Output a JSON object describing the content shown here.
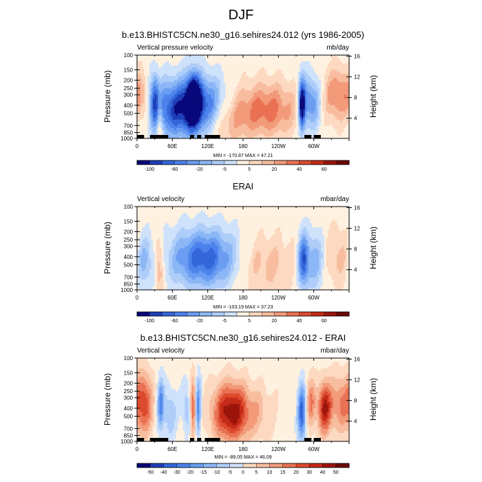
{
  "figure": {
    "title": "DJF"
  },
  "colors": {
    "diverging": [
      "#08087a",
      "#1f3fb8",
      "#3366d9",
      "#4d82ec",
      "#6a9df2",
      "#8cb7f6",
      "#aecdf9",
      "#cfe2fb",
      "#fff1e0",
      "#fcd9c0",
      "#f8bd9f",
      "#f29a7a",
      "#ea7153",
      "#dc4a2e",
      "#c42a18",
      "#9c150c",
      "#6e0a05"
    ],
    "cap_black": "#000000"
  },
  "axes": {
    "pressure_ticks": [
      "100",
      "150",
      "200",
      "250",
      "300",
      "400",
      "500",
      "700",
      "850",
      "1000"
    ],
    "height_ticks": [
      "16",
      "12",
      "8",
      "4"
    ],
    "lon_ticks": [
      "0",
      "60E",
      "120E",
      "180",
      "120W",
      "60W"
    ],
    "ylabel": "Pressure (mb)",
    "y2label": "Height (km)"
  },
  "chart_data": [
    {
      "type": "heatmap",
      "title": "b.e13.BHISTC5CN.ne30_g16.sehires24.012 (yrs 1986-2005)",
      "left_label": "Vertical pressure velocity",
      "right_label": "mb/day",
      "stats": "MIN = -170.87  MAX = 47.21",
      "min": -170.87,
      "max": 47.21,
      "colorbar_labels": [
        "-100",
        "-60",
        "-20",
        "-5",
        "5",
        "20",
        "40",
        "60"
      ],
      "xlim": [
        0,
        360
      ],
      "ylim_mb": [
        1000,
        100
      ],
      "features": [
        {
          "lon": 32,
          "p": 350,
          "w": 7,
          "s": 0.5,
          "a": -22
        },
        {
          "lon": 65,
          "p": 450,
          "w": 28,
          "s": 0.55,
          "a": -25
        },
        {
          "lon": 96,
          "p": 350,
          "w": 8,
          "s": 0.5,
          "a": -32
        },
        {
          "lon": 112,
          "p": 400,
          "w": 26,
          "s": 0.55,
          "a": -22
        },
        {
          "lon": 38,
          "p": 500,
          "w": 4,
          "s": 0.6,
          "a": 18
        },
        {
          "lon": 8,
          "p": 330,
          "w": 9,
          "s": 0.45,
          "a": 10
        },
        {
          "lon": 150,
          "p": 650,
          "w": 30,
          "s": 0.45,
          "a": 8
        },
        {
          "lon": 220,
          "p": 450,
          "w": 38,
          "s": 0.5,
          "a": 16
        },
        {
          "lon": 280,
          "p": 400,
          "w": 4,
          "s": 0.5,
          "a": -32
        },
        {
          "lon": 294,
          "p": 380,
          "w": 12,
          "s": 0.5,
          "a": -20
        },
        {
          "lon": 340,
          "p": 300,
          "w": 16,
          "s": 0.5,
          "a": 15
        }
      ],
      "topography": [
        [
          0,
          12
        ],
        [
          22,
          16
        ],
        [
          28,
          12
        ],
        [
          30,
          18
        ],
        [
          34,
          19
        ],
        [
          90,
          7
        ],
        [
          102,
          7
        ],
        [
          115,
          10
        ],
        [
          126,
          12
        ],
        [
          125,
          16
        ],
        [
          284,
          12
        ],
        [
          300,
          12
        ]
      ]
    },
    {
      "type": "heatmap",
      "title": "ERAI",
      "left_label": "Vertical velocity",
      "right_label": "mbar/day",
      "stats": "MIN = -103.19  MAX = 37.23",
      "min": -103.19,
      "max": 37.23,
      "colorbar_labels": [
        "-100",
        "-60",
        "-20",
        "-5",
        "5",
        "20",
        "40",
        "60"
      ],
      "xlim": [
        0,
        360
      ],
      "ylim_mb": [
        1000,
        100
      ],
      "features": [
        {
          "lon": 12,
          "p": 450,
          "w": 10,
          "s": 0.5,
          "a": -12
        },
        {
          "lon": 38,
          "p": 500,
          "w": 5,
          "s": 0.55,
          "a": 12
        },
        {
          "lon": 115,
          "p": 420,
          "w": 40,
          "s": 0.55,
          "a": -25
        },
        {
          "lon": 215,
          "p": 500,
          "w": 40,
          "s": 0.55,
          "a": 8
        },
        {
          "lon": 282,
          "p": 450,
          "w": 6,
          "s": 0.5,
          "a": -22
        },
        {
          "lon": 300,
          "p": 450,
          "w": 14,
          "s": 0.55,
          "a": -14
        },
        {
          "lon": 340,
          "p": 400,
          "w": 18,
          "s": 0.55,
          "a": 8
        }
      ],
      "topography": []
    },
    {
      "type": "heatmap",
      "title": "b.e13.BHISTC5CN.ne30_g16.sehires24.012 - ERAI",
      "left_label": "Vertical velocity",
      "right_label": "mbar/day",
      "stats": "MIN = -89.05  MAX = 46.09",
      "min": -89.05,
      "max": 46.09,
      "colorbar_labels": [
        "-50",
        "-40",
        "-30",
        "-20",
        "-15",
        "-10",
        "-5",
        "0",
        "5",
        "10",
        "15",
        "20",
        "30",
        "40",
        "50"
      ],
      "xlim": [
        0,
        360
      ],
      "ylim_mb": [
        1000,
        100
      ],
      "features": [
        {
          "lon": 12,
          "p": 350,
          "w": 10,
          "s": 0.6,
          "a": 20
        },
        {
          "lon": 40,
          "p": 350,
          "w": 4,
          "s": 0.5,
          "a": -18
        },
        {
          "lon": 55,
          "p": 450,
          "w": 8,
          "s": 0.5,
          "a": -10
        },
        {
          "lon": 85,
          "p": 400,
          "w": 6,
          "s": 0.5,
          "a": -10
        },
        {
          "lon": 96,
          "p": 400,
          "w": 4,
          "s": 0.55,
          "a": 24
        },
        {
          "lon": 103,
          "p": 400,
          "w": 4,
          "s": 0.55,
          "a": -24
        },
        {
          "lon": 160,
          "p": 450,
          "w": 22,
          "s": 0.55,
          "a": 30
        },
        {
          "lon": 210,
          "p": 450,
          "w": 18,
          "s": 0.5,
          "a": 6
        },
        {
          "lon": 280,
          "p": 450,
          "w": 5,
          "s": 0.55,
          "a": -25
        },
        {
          "lon": 295,
          "p": 350,
          "w": 6,
          "s": 0.5,
          "a": 14
        },
        {
          "lon": 318,
          "p": 400,
          "w": 8,
          "s": 0.5,
          "a": 25
        },
        {
          "lon": 345,
          "p": 350,
          "w": 14,
          "s": 0.55,
          "a": 14
        }
      ],
      "topography": [
        [
          0,
          12
        ],
        [
          22,
          16
        ],
        [
          28,
          12
        ],
        [
          30,
          18
        ],
        [
          34,
          19
        ],
        [
          90,
          7
        ],
        [
          102,
          7
        ],
        [
          115,
          10
        ],
        [
          126,
          12
        ],
        [
          125,
          16
        ],
        [
          284,
          12
        ],
        [
          300,
          12
        ]
      ]
    }
  ]
}
